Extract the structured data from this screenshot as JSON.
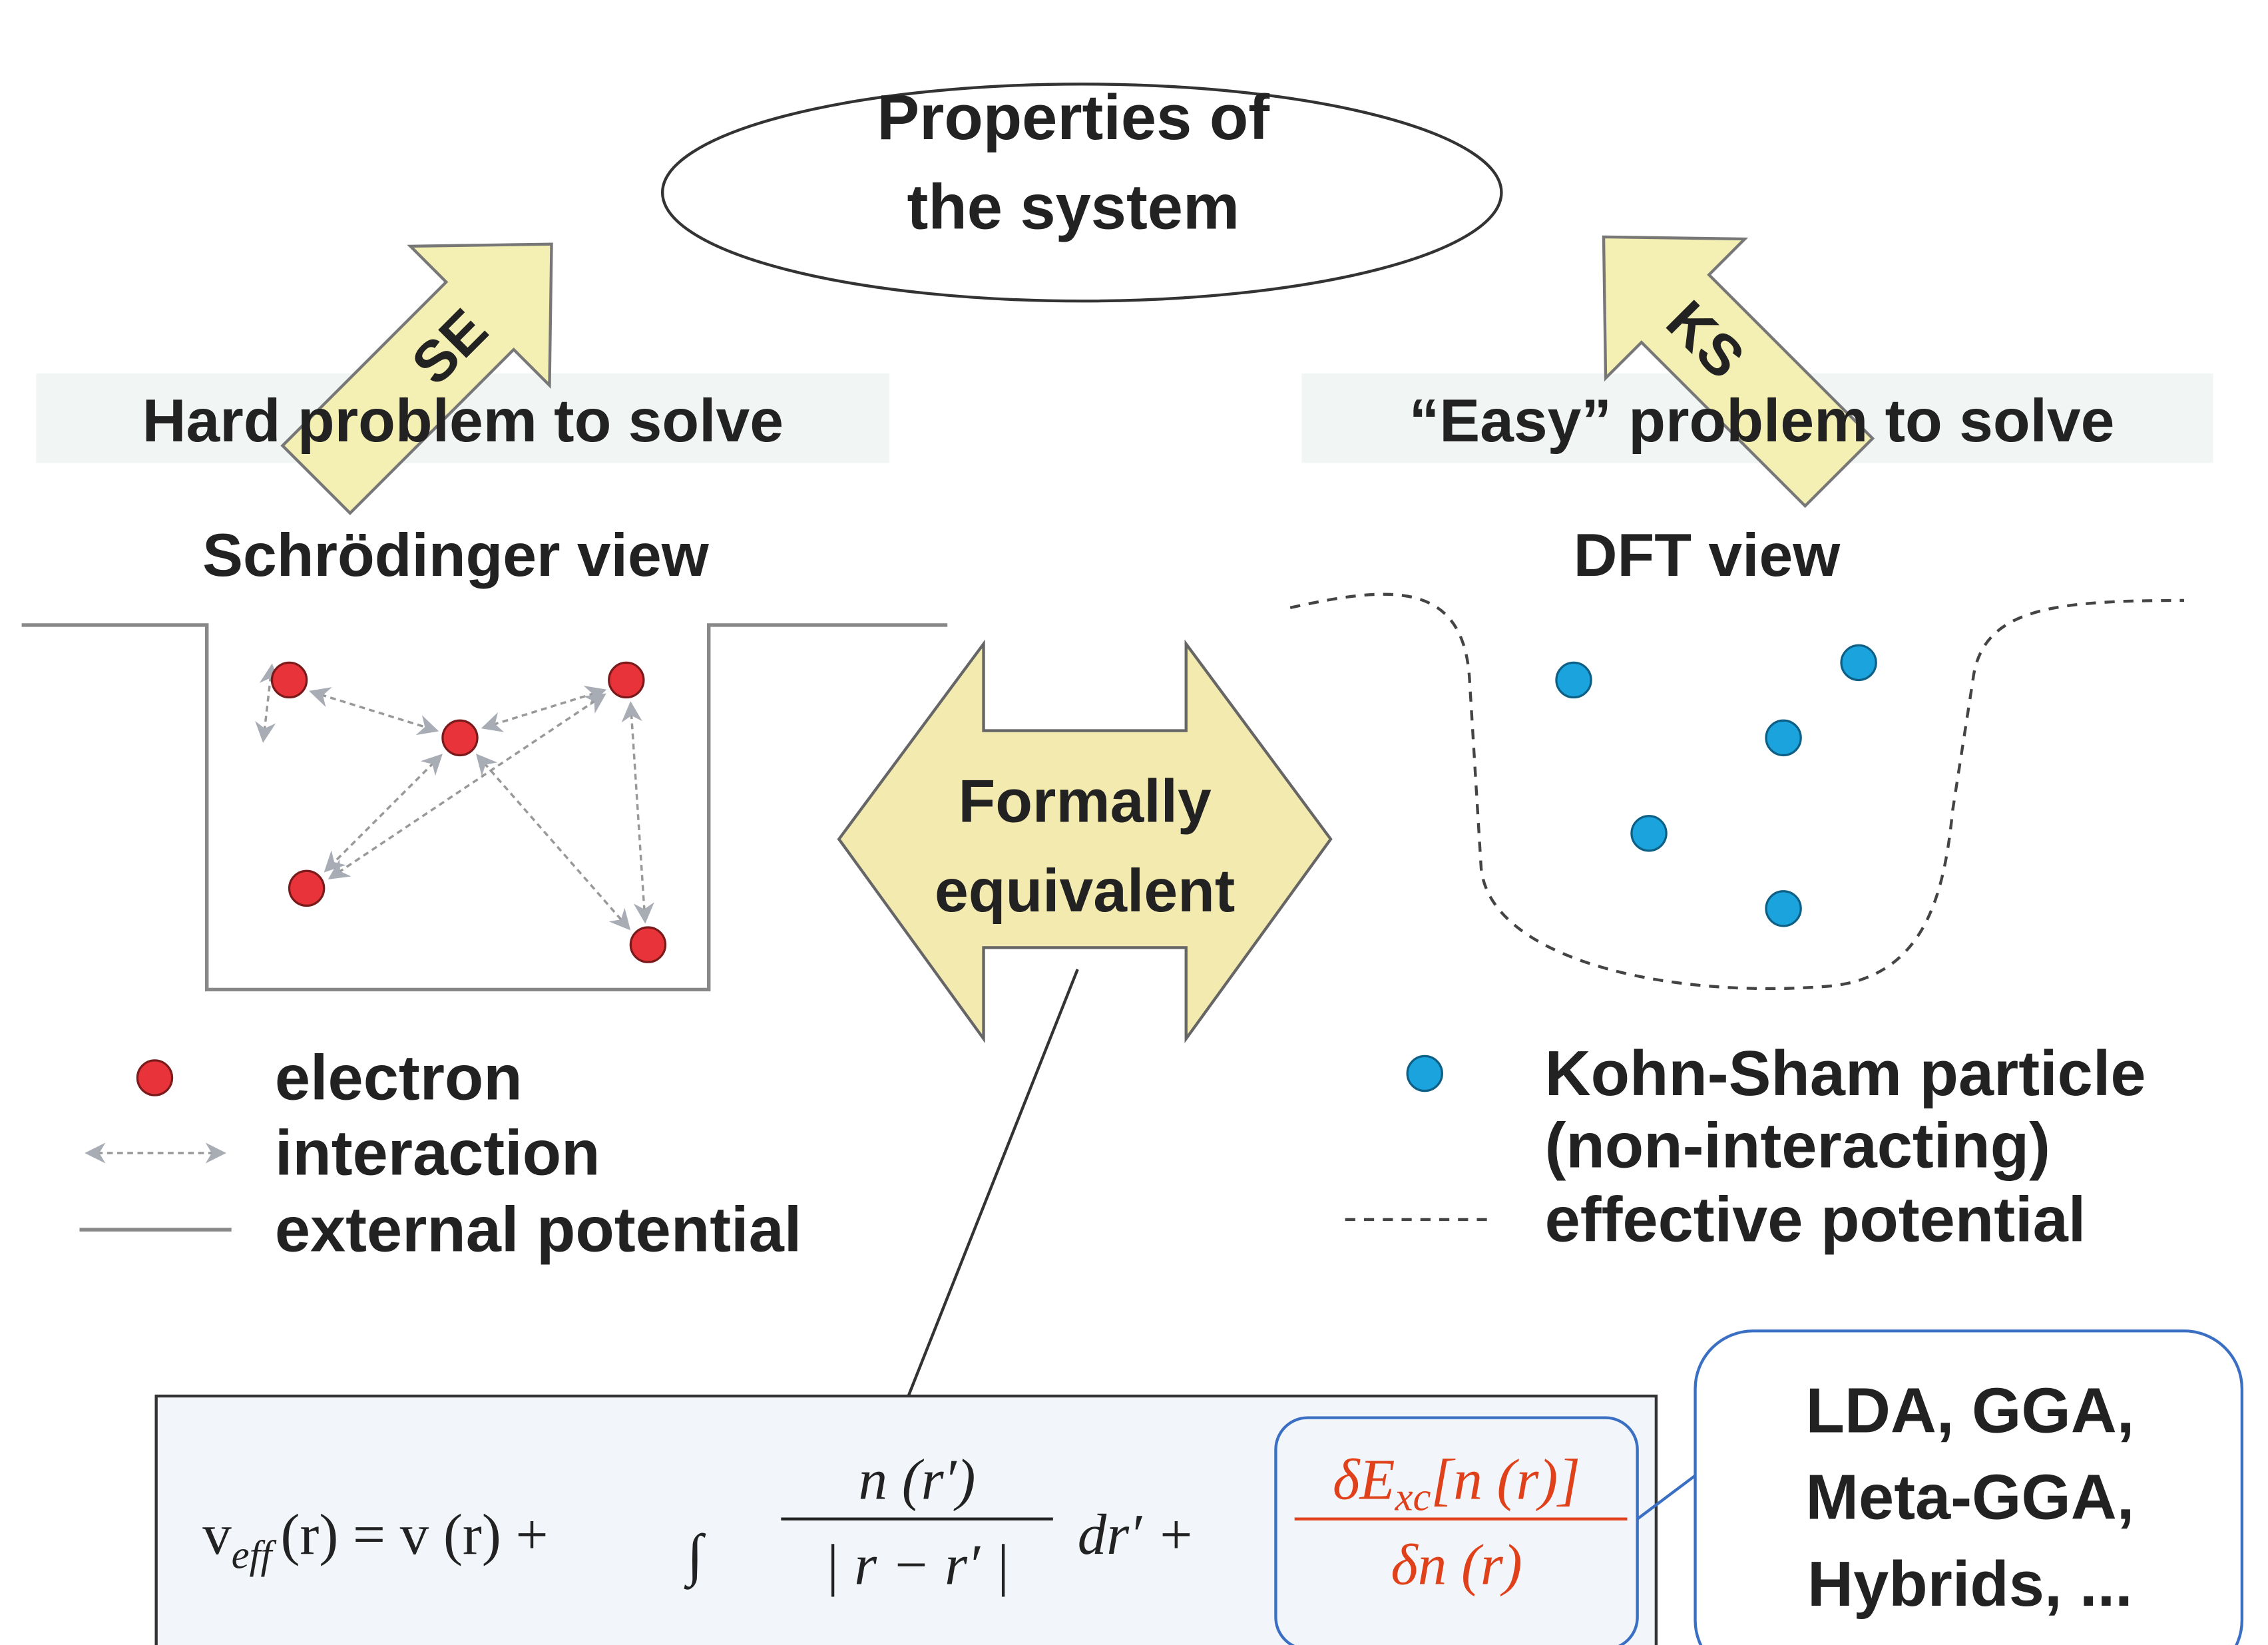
{
  "top": {
    "lines": [
      "Properties of",
      "the system"
    ]
  },
  "left": {
    "arrow_label": "SE",
    "problem": "Hard problem to solve",
    "view": "Schrödinger view"
  },
  "right": {
    "arrow_label": "KS",
    "problem": "“Easy” problem to solve",
    "view": "DFT view"
  },
  "center": {
    "lines": [
      "Formally",
      "equivalent"
    ]
  },
  "legend_left": [
    "electron",
    "interaction",
    "external potential"
  ],
  "legend_right": [
    "Kohn-Sham particle",
    "(non-interacting)",
    "effective potential"
  ],
  "equation": {
    "lhs": "v",
    "lhs_sub": "eff",
    "lhs_rest": "(r) = v (r) +",
    "integral": "∫",
    "numerator": "n (r′)",
    "denominator": "| r − r′ |",
    "differential": "dr′ +",
    "xc_numerator": "δE",
    "xc_sub": "xc",
    "xc_numerator_rest": "[n (r)]",
    "xc_denominator": "δn (r)"
  },
  "functionals": [
    "LDA, GGA,",
    "Meta-GGA,",
    "Hybrids, ..."
  ]
}
